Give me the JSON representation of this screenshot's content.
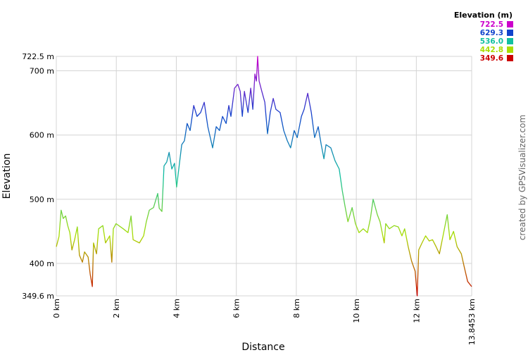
{
  "chart_data": {
    "type": "line",
    "xlabel": "Distance",
    "ylabel": "Elevation",
    "credit": "created by GPSVisualizer.com",
    "grid": true,
    "legend": {
      "title": "Elevation (m)",
      "position": "top-right",
      "stops": [
        {
          "value": 722.5,
          "color": "#cc00cc"
        },
        {
          "value": 629.3,
          "color": "#1144cc"
        },
        {
          "value": 536.0,
          "label": "536.0",
          "color": "#11c0a0"
        },
        {
          "value": 442.8,
          "color": "#aadd00"
        },
        {
          "value": 349.6,
          "color": "#cc0000"
        }
      ]
    },
    "xlim": [
      0,
      13.8453
    ],
    "ylim": [
      349.6,
      722.5
    ],
    "xticks": [
      {
        "value": 0,
        "label": "0 km"
      },
      {
        "value": 2,
        "label": "2 km"
      },
      {
        "value": 4,
        "label": "4 km"
      },
      {
        "value": 6,
        "label": "6 km"
      },
      {
        "value": 8,
        "label": "8 km"
      },
      {
        "value": 10,
        "label": "10 km"
      },
      {
        "value": 12,
        "label": "12 km"
      },
      {
        "value": 13.8453,
        "label": "13.8453 km"
      }
    ],
    "yticks": [
      {
        "value": 349.6,
        "label": "349.6 m"
      },
      {
        "value": 400,
        "label": "400 m"
      },
      {
        "value": 500,
        "label": "500 m"
      },
      {
        "value": 600,
        "label": "600 m"
      },
      {
        "value": 700,
        "label": "700 m"
      },
      {
        "value": 722.5,
        "label": "722.5 m"
      }
    ],
    "x": [
      0,
      0.09,
      0.16,
      0.23,
      0.31,
      0.38,
      0.45,
      0.52,
      0.61,
      0.7,
      0.77,
      0.87,
      0.94,
      1.06,
      1.13,
      1.2,
      1.24,
      1.34,
      1.41,
      1.55,
      1.64,
      1.78,
      1.85,
      1.9,
      1.99,
      2.23,
      2.39,
      2.49,
      2.56,
      2.77,
      2.91,
      3.0,
      3.1,
      3.24,
      3.38,
      3.43,
      3.52,
      3.59,
      3.68,
      3.76,
      3.85,
      3.94,
      4.01,
      4.11,
      4.18,
      4.27,
      4.36,
      4.46,
      4.58,
      4.69,
      4.81,
      4.93,
      5.05,
      5.21,
      5.33,
      5.44,
      5.54,
      5.66,
      5.75,
      5.82,
      5.94,
      6.05,
      6.13,
      6.2,
      6.27,
      6.39,
      6.48,
      6.55,
      6.62,
      6.67,
      6.71,
      6.76,
      6.85,
      6.95,
      7.04,
      7.13,
      7.23,
      7.32,
      7.46,
      7.58,
      7.7,
      7.81,
      7.93,
      8.03,
      8.17,
      8.26,
      8.38,
      8.5,
      8.61,
      8.73,
      8.83,
      8.92,
      8.99,
      9.15,
      9.29,
      9.43,
      9.53,
      9.62,
      9.72,
      9.86,
      9.97,
      10.09,
      10.23,
      10.37,
      10.47,
      10.56,
      10.7,
      10.79,
      10.93,
      10.98,
      11.1,
      11.26,
      11.4,
      11.52,
      11.61,
      11.73,
      11.84,
      11.96,
      12.03,
      12.08,
      12.19,
      12.31,
      12.43,
      12.54,
      12.66,
      12.77,
      12.89,
      13.03,
      13.12,
      13.24,
      13.36,
      13.5,
      13.59,
      13.71,
      13.8453
    ],
    "values": [
      426,
      442,
      483,
      470,
      474,
      459,
      448,
      421,
      437,
      457,
      413,
      402,
      418,
      410,
      383,
      364,
      432,
      415,
      454,
      459,
      432,
      443,
      402,
      454,
      462,
      454,
      448,
      474,
      437,
      432,
      443,
      465,
      483,
      487,
      509,
      486,
      481,
      552,
      558,
      573,
      547,
      556,
      519,
      558,
      585,
      591,
      618,
      607,
      646,
      629,
      635,
      651,
      613,
      580,
      613,
      607,
      629,
      618,
      646,
      629,
      673,
      679,
      668,
      629,
      668,
      635,
      673,
      640,
      695,
      684,
      722.5,
      684,
      668,
      651,
      602,
      635,
      657,
      640,
      635,
      607,
      591,
      580,
      607,
      596,
      629,
      640,
      665,
      635,
      596,
      613,
      585,
      563,
      585,
      580,
      560,
      547,
      514,
      490,
      465,
      487,
      462,
      448,
      454,
      448,
      470,
      500,
      476,
      465,
      432,
      462,
      454,
      459,
      457,
      443,
      454,
      426,
      404,
      388,
      349.6,
      421,
      432,
      443,
      435,
      437,
      426,
      415,
      443,
      476,
      437,
      450,
      426,
      415,
      396,
      372,
      364
    ]
  }
}
